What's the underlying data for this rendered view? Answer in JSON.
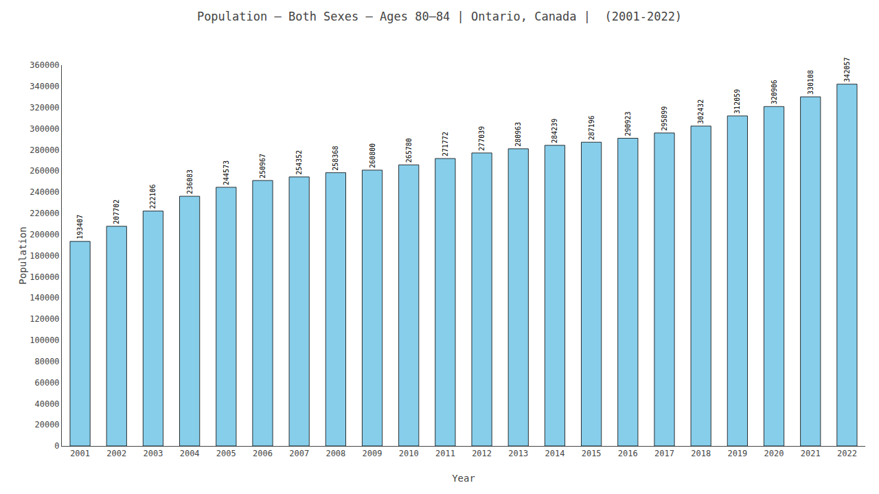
{
  "chart_data": {
    "type": "bar",
    "title": "Population – Both Sexes – Ages 80–84 | Ontario, Canada |  (2001-2022)",
    "x_label": "Year",
    "y_label": "Population",
    "categories": [
      "2001",
      "2002",
      "2003",
      "2004",
      "2005",
      "2006",
      "2007",
      "2008",
      "2009",
      "2010",
      "2011",
      "2012",
      "2013",
      "2014",
      "2015",
      "2016",
      "2017",
      "2018",
      "2019",
      "2020",
      "2021",
      "2022"
    ],
    "values": [
      193407,
      207702,
      222106,
      236083,
      244573,
      250967,
      254352,
      258368,
      260800,
      265780,
      271772,
      277039,
      280963,
      284239,
      287196,
      290923,
      295899,
      302432,
      312059,
      320906,
      330108,
      342057
    ],
    "color": "#87CEEB",
    "ylim": [
      0,
      360000
    ],
    "yticks": [
      0,
      20000,
      40000,
      60000,
      80000,
      100000,
      120000,
      140000,
      160000,
      180000,
      200000,
      220000,
      240000,
      260000,
      280000,
      300000,
      320000,
      340000,
      360000
    ],
    "grid": false,
    "data_labels": true
  }
}
